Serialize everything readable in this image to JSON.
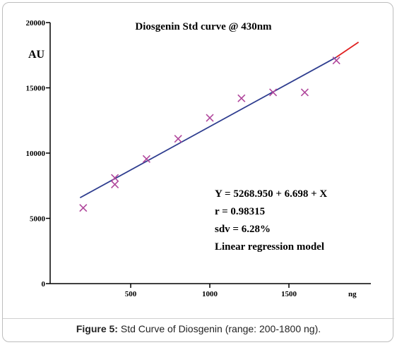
{
  "chart_data": {
    "type": "scatter",
    "title": "Diosgenin Std curve @ 430nm",
    "ylabel": "AU",
    "xlabel": "ng",
    "x_ticks": [
      500,
      1000,
      1500
    ],
    "y_ticks": [
      0,
      5000,
      10000,
      15000,
      20000
    ],
    "xlim": [
      0,
      1900
    ],
    "ylim": [
      0,
      20000
    ],
    "points": [
      {
        "x": 200,
        "y": 5800
      },
      {
        "x": 400,
        "y": 8100
      },
      {
        "x": 400,
        "y": 7600
      },
      {
        "x": 600,
        "y": 9550
      },
      {
        "x": 800,
        "y": 11100
      },
      {
        "x": 1000,
        "y": 12700
      },
      {
        "x": 1200,
        "y": 14200
      },
      {
        "x": 1400,
        "y": 14650
      },
      {
        "x": 1600,
        "y": 14650
      },
      {
        "x": 1800,
        "y": 17100
      }
    ],
    "fit_line": {
      "x_start": 180,
      "x_end": 1800,
      "y_start": 6580,
      "y_end": 17350
    },
    "extension_line": {
      "x_start": 1800,
      "x_end": 1940,
      "y_start": 17350,
      "y_end": 18500
    },
    "annotations": [
      "Y = 5268.950 + 6.698 + X",
      "r = 0.98315",
      "sdv = 6.28%",
      "Linear regression model"
    ],
    "colors": {
      "marker": "#b0479c",
      "fit": "#2e3d8f",
      "extension": "#e02020",
      "axis": "#000000"
    }
  },
  "caption": {
    "label": "Figure 5:",
    "text": "Std Curve of Diosgenin (range: 200-1800 ng)."
  }
}
